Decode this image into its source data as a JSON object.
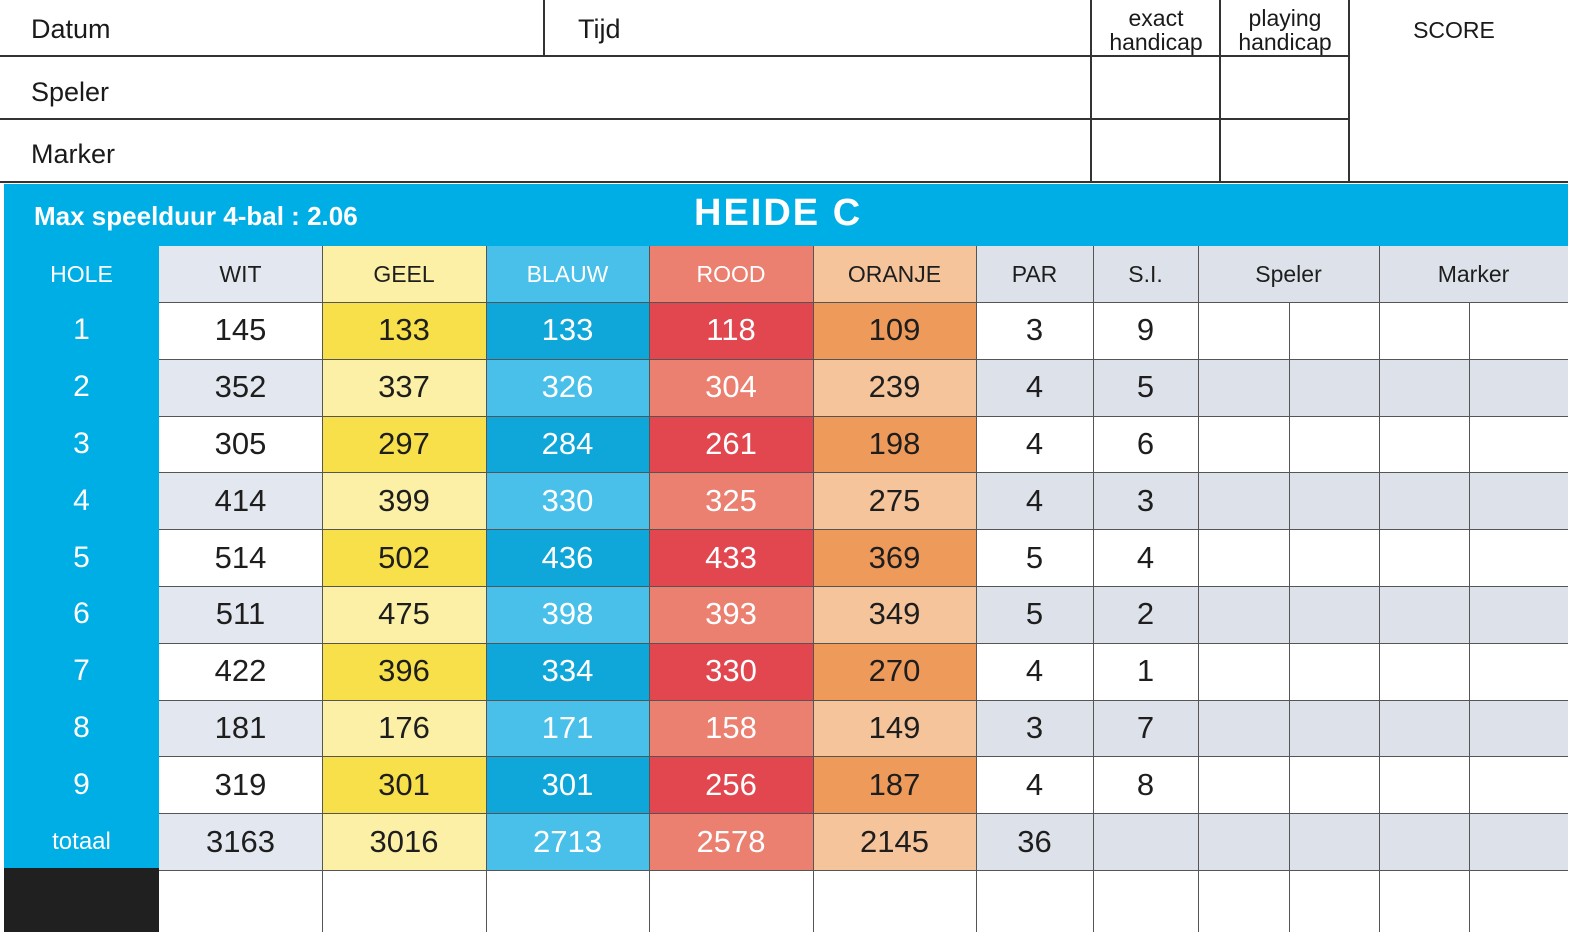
{
  "form": {
    "datum_label": "Datum",
    "tijd_label": "Tijd",
    "exact_handicap_label": "exact\nhandicap",
    "playing_handicap_label": "playing\nhandicap",
    "score_label": "SCORE",
    "speler_label": "Speler",
    "marker_label": "Marker"
  },
  "band": {
    "max_duration": "Max speelduur 4-bal : 2.06",
    "course_name": "HEIDE  C"
  },
  "table": {
    "headers": [
      "HOLE",
      "WIT",
      "GEEL",
      "BLAUW",
      "ROOD",
      "ORANJE",
      "PAR",
      "S.I.",
      "Speler",
      "Marker"
    ],
    "rows": [
      {
        "hole": "1",
        "wit": "145",
        "geel": "133",
        "blauw": "133",
        "rood": "118",
        "oranje": "109",
        "par": "3",
        "si": "9"
      },
      {
        "hole": "2",
        "wit": "352",
        "geel": "337",
        "blauw": "326",
        "rood": "304",
        "oranje": "239",
        "par": "4",
        "si": "5"
      },
      {
        "hole": "3",
        "wit": "305",
        "geel": "297",
        "blauw": "284",
        "rood": "261",
        "oranje": "198",
        "par": "4",
        "si": "6"
      },
      {
        "hole": "4",
        "wit": "414",
        "geel": "399",
        "blauw": "330",
        "rood": "325",
        "oranje": "275",
        "par": "4",
        "si": "3"
      },
      {
        "hole": "5",
        "wit": "514",
        "geel": "502",
        "blauw": "436",
        "rood": "433",
        "oranje": "369",
        "par": "5",
        "si": "4"
      },
      {
        "hole": "6",
        "wit": "511",
        "geel": "475",
        "blauw": "398",
        "rood": "393",
        "oranje": "349",
        "par": "5",
        "si": "2"
      },
      {
        "hole": "7",
        "wit": "422",
        "geel": "396",
        "blauw": "334",
        "rood": "330",
        "oranje": "270",
        "par": "4",
        "si": "1"
      },
      {
        "hole": "8",
        "wit": "181",
        "geel": "176",
        "blauw": "171",
        "rood": "158",
        "oranje": "149",
        "par": "3",
        "si": "7"
      },
      {
        "hole": "9",
        "wit": "319",
        "geel": "301",
        "blauw": "301",
        "rood": "256",
        "oranje": "187",
        "par": "4",
        "si": "8"
      }
    ],
    "total": {
      "hole": "totaal",
      "wit": "3163",
      "geel": "3016",
      "blauw": "2713",
      "rood": "2578",
      "oranje": "2145",
      "par": "36"
    }
  },
  "colors": {
    "hole_blue": "#00aee6",
    "wit_light": "#ffffff",
    "wit_shade": "#e3e8f0",
    "geel_strong": "#f7e04a",
    "geel_light": "#fbf0a6",
    "blauw_strong": "#0fa7d9",
    "blauw_light": "#49c0ea",
    "rood_strong": "#e2464e",
    "rood_light": "#eb7f70",
    "oranje_strong": "#ee9a5a",
    "oranje_light": "#f5c49a",
    "grey_header": "#dde2ea",
    "text_on_color": "#ffffff"
  }
}
